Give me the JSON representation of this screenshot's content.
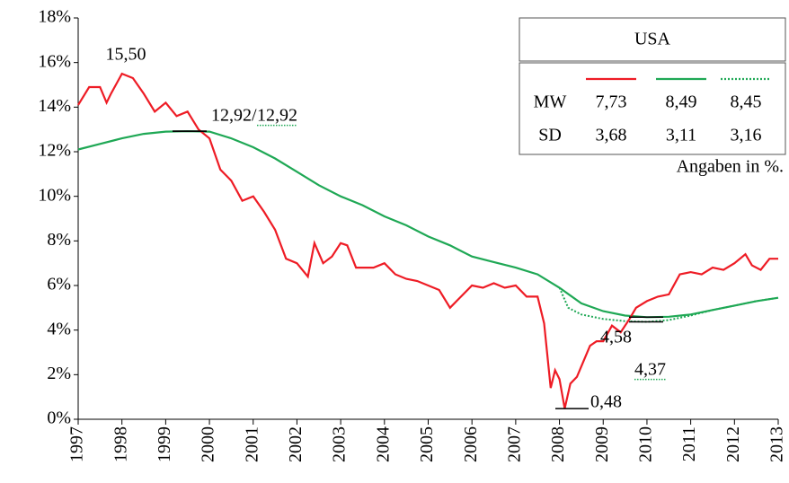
{
  "chart_data": {
    "type": "line",
    "xlim": [
      1997,
      2013
    ],
    "xticks": [
      1997,
      1998,
      1999,
      2000,
      2001,
      2002,
      2003,
      2004,
      2005,
      2006,
      2007,
      2008,
      2009,
      2010,
      2011,
      2012,
      2013
    ],
    "ylim": [
      0,
      18
    ],
    "yticks": [
      {
        "value": 0,
        "label": "0%"
      },
      {
        "value": 2,
        "label": "2%"
      },
      {
        "value": 4,
        "label": "4%"
      },
      {
        "value": 6,
        "label": "6%"
      },
      {
        "value": 8,
        "label": "8%"
      },
      {
        "value": 10,
        "label": "10%"
      },
      {
        "value": 12,
        "label": "12%"
      },
      {
        "value": 14,
        "label": "14%"
      },
      {
        "value": 16,
        "label": "16%"
      },
      {
        "value": 18,
        "label": "18%"
      }
    ],
    "grid": false,
    "series": [
      {
        "color": "#ee1c25",
        "dashed": false,
        "x": [
          1997,
          1997.25,
          1997.5,
          1997.65,
          1997.75,
          1998,
          1998.25,
          1998.5,
          1998.75,
          1999,
          1999.25,
          1999.5,
          1999.75,
          2000,
          2000.25,
          2000.5,
          2000.75,
          2001,
          2001.25,
          2001.5,
          2001.75,
          2002,
          2002.25,
          2002.4,
          2002.6,
          2002.8,
          2003,
          2003.15,
          2003.35,
          2003.75,
          2004,
          2004.25,
          2004.5,
          2004.75,
          2005,
          2005.25,
          2005.5,
          2005.75,
          2006,
          2006.25,
          2006.5,
          2006.75,
          2007,
          2007.25,
          2007.5,
          2007.65,
          2007.8,
          2007.9,
          2008,
          2008.12,
          2008.25,
          2008.4,
          2008.55,
          2008.7,
          2008.85,
          2009,
          2009.2,
          2009.4,
          2009.6,
          2009.75,
          2010,
          2010.25,
          2010.5,
          2010.75,
          2011,
          2011.25,
          2011.5,
          2011.75,
          2012,
          2012.25,
          2012.4,
          2012.6,
          2012.8,
          2013
        ],
        "values": [
          14.1,
          14.9,
          14.9,
          14.2,
          14.6,
          15.5,
          15.3,
          14.6,
          13.8,
          14.2,
          13.6,
          13.8,
          13.0,
          12.6,
          11.2,
          10.7,
          9.8,
          10.0,
          9.3,
          8.5,
          7.2,
          7.0,
          6.4,
          7.9,
          7.0,
          7.3,
          7.9,
          7.8,
          6.8,
          6.8,
          7.0,
          6.5,
          6.3,
          6.2,
          6.0,
          5.8,
          5.0,
          5.5,
          6.0,
          5.9,
          6.1,
          5.9,
          6.0,
          5.5,
          5.5,
          4.3,
          1.4,
          2.2,
          1.8,
          0.48,
          1.6,
          1.9,
          2.6,
          3.3,
          3.5,
          3.5,
          4.2,
          3.9,
          4.5,
          5.0,
          5.3,
          5.5,
          5.6,
          6.5,
          6.6,
          6.5,
          6.8,
          6.7,
          7.0,
          7.4,
          6.9,
          6.7,
          7.2,
          7.2
        ]
      },
      {
        "color": "#1fa855",
        "dashed": false,
        "x": [
          1997,
          1997.5,
          1998,
          1998.5,
          1999,
          1999.5,
          2000,
          2000.5,
          2001,
          2001.5,
          2002,
          2002.5,
          2003,
          2003.5,
          2004,
          2004.5,
          2005,
          2005.5,
          2006,
          2006.5,
          2007,
          2007.5,
          2008,
          2008.5,
          2009,
          2009.5,
          2010,
          2010.5,
          2011,
          2011.5,
          2012,
          2012.5,
          2013
        ],
        "values": [
          12.1,
          12.35,
          12.6,
          12.8,
          12.9,
          12.92,
          12.9,
          12.6,
          12.2,
          11.7,
          11.1,
          10.5,
          10.0,
          9.6,
          9.1,
          8.7,
          8.2,
          7.8,
          7.3,
          7.05,
          6.8,
          6.5,
          5.9,
          5.2,
          4.85,
          4.65,
          4.58,
          4.6,
          4.7,
          4.9,
          5.1,
          5.3,
          5.45
        ]
      },
      {
        "color": "#1fa855",
        "dashed": true,
        "x": [
          2008,
          2008.2,
          2008.5,
          2009,
          2009.5,
          2010,
          2010.5,
          2011,
          2011.5,
          2012,
          2012.5,
          2013
        ],
        "values": [
          5.9,
          5.0,
          4.7,
          4.5,
          4.4,
          4.37,
          4.45,
          4.65,
          4.9,
          5.1,
          5.3,
          5.45
        ]
      }
    ],
    "annotations": [
      {
        "label": "15,50",
        "value": 15.5,
        "series": 0
      },
      {
        "label": "12,92",
        "value": 12.92,
        "series": 1
      },
      {
        "label": "12,92",
        "value": 12.92,
        "series": 2
      },
      {
        "label": "4,58",
        "value": 4.58,
        "series": 1
      },
      {
        "label": "4,37",
        "value": 4.37,
        "series": 2
      },
      {
        "label": "0,48",
        "value": 0.48,
        "series": 0
      }
    ],
    "annotation_separator": "/",
    "table": {
      "title": "USA",
      "rows": [
        {
          "label": "MW",
          "values": [
            7.73,
            8.49,
            8.45
          ],
          "value_labels": [
            "7,73",
            "8,49",
            "8,45"
          ]
        },
        {
          "label": "SD",
          "values": [
            3.68,
            3.11,
            3.16
          ],
          "value_labels": [
            "3,68",
            "3,11",
            "3,16"
          ]
        }
      ]
    },
    "note": "Angaben in %."
  }
}
